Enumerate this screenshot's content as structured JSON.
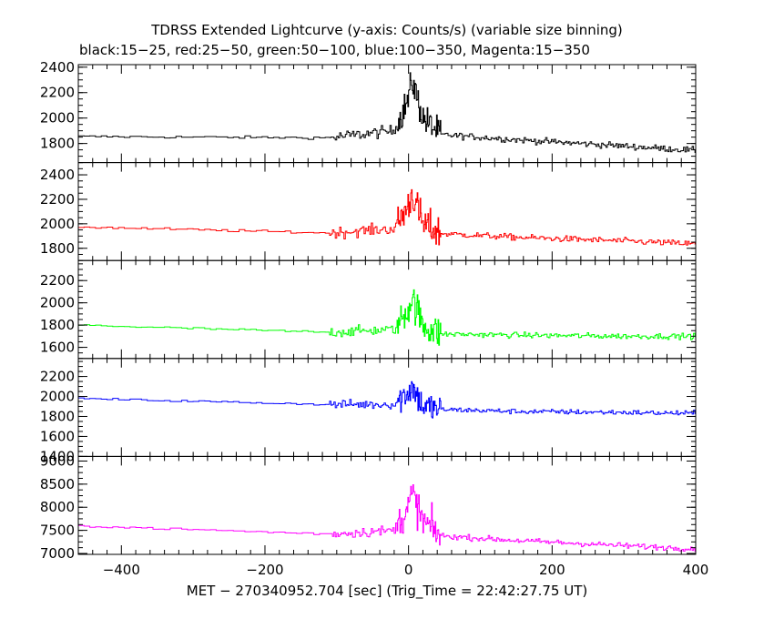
{
  "title_line1": "TDRSS Extended Lightcurve (y-axis: Counts/s) (variable size binning)",
  "title_line2": "black:15−25, red:25−50, green:50−100, blue:100−350, Magenta:15−350",
  "xlabel": "MET − 270340952.704 [sec] (Trig_Time = 22:42:27.75 UT)",
  "chart_data": {
    "type": "line",
    "xlim": [
      -460,
      400
    ],
    "x_ticks": [
      -400,
      -200,
      0,
      200,
      400
    ],
    "x_tick_labels": [
      "−400",
      "−200",
      "0",
      "200",
      "400"
    ],
    "grid": false,
    "panels": [
      {
        "band": "15-25",
        "color": "#000000",
        "ylim": [
          1650,
          2420
        ],
        "y_ticks": [
          1800,
          2000,
          2200,
          2400
        ],
        "y_tick_labels": [
          "1800",
          "2000",
          "2200",
          "2400"
        ],
        "segments": [
          {
            "x_from": -460,
            "x_to": -110,
            "bin": 8,
            "noise": 10
          },
          {
            "x_from": -110,
            "x_to": -15,
            "bin": 2,
            "noise": 45
          },
          {
            "x_from": -15,
            "x_to": 45,
            "bin": 1,
            "noise": 120
          },
          {
            "x_from": 45,
            "x_to": 400,
            "bin": 2,
            "noise": 25
          }
        ],
        "trend": [
          [
            -460,
            1855
          ],
          [
            -110,
            1845
          ],
          [
            -20,
            1900
          ],
          [
            0,
            2150
          ],
          [
            5,
            2300
          ],
          [
            20,
            2000
          ],
          [
            45,
            1870
          ],
          [
            150,
            1830
          ],
          [
            300,
            1780
          ],
          [
            400,
            1745
          ]
        ]
      },
      {
        "band": "25-50",
        "color": "#ff0000",
        "ylim": [
          1700,
          2500
        ],
        "y_ticks": [
          1800,
          2000,
          2200,
          2400
        ],
        "y_tick_labels": [
          "1800",
          "2000",
          "2200",
          "2400"
        ],
        "segments": [
          {
            "x_from": -460,
            "x_to": -110,
            "bin": 8,
            "noise": 10
          },
          {
            "x_from": -110,
            "x_to": -15,
            "bin": 2,
            "noise": 45
          },
          {
            "x_from": -15,
            "x_to": 45,
            "bin": 1,
            "noise": 140
          },
          {
            "x_from": 45,
            "x_to": 400,
            "bin": 2,
            "noise": 25
          }
        ],
        "trend": [
          [
            -460,
            1975
          ],
          [
            -110,
            1925
          ],
          [
            -20,
            1960
          ],
          [
            0,
            2150
          ],
          [
            5,
            2250
          ],
          [
            20,
            2000
          ],
          [
            45,
            1920
          ],
          [
            150,
            1890
          ],
          [
            300,
            1860
          ],
          [
            400,
            1835
          ]
        ]
      },
      {
        "band": "50-100",
        "color": "#00ff00",
        "ylim": [
          1500,
          2380
        ],
        "y_ticks": [
          1600,
          1800,
          2000,
          2200
        ],
        "y_tick_labels": [
          "1600",
          "1800",
          "2000",
          "2200"
        ],
        "segments": [
          {
            "x_from": -460,
            "x_to": -110,
            "bin": 8,
            "noise": 10
          },
          {
            "x_from": -110,
            "x_to": -15,
            "bin": 2,
            "noise": 45
          },
          {
            "x_from": -15,
            "x_to": 45,
            "bin": 1,
            "noise": 150
          },
          {
            "x_from": 45,
            "x_to": 400,
            "bin": 2,
            "noise": 25
          }
        ],
        "trend": [
          [
            -460,
            1800
          ],
          [
            -110,
            1735
          ],
          [
            -20,
            1760
          ],
          [
            0,
            1950
          ],
          [
            5,
            2050
          ],
          [
            20,
            1800
          ],
          [
            45,
            1720
          ],
          [
            150,
            1710
          ],
          [
            300,
            1700
          ],
          [
            400,
            1700
          ]
        ]
      },
      {
        "band": "100-350",
        "color": "#0000ff",
        "ylim": [
          1400,
          2380
        ],
        "y_ticks": [
          1400,
          1600,
          1800,
          2000,
          2200
        ],
        "y_tick_labels": [
          "1400",
          "1600",
          "1800",
          "2000",
          "2200"
        ],
        "segments": [
          {
            "x_from": -460,
            "x_to": -110,
            "bin": 8,
            "noise": 10
          },
          {
            "x_from": -110,
            "x_to": -15,
            "bin": 2,
            "noise": 45
          },
          {
            "x_from": -15,
            "x_to": 45,
            "bin": 1,
            "noise": 150
          },
          {
            "x_from": 45,
            "x_to": 400,
            "bin": 2,
            "noise": 25
          }
        ],
        "trend": [
          [
            -460,
            1980
          ],
          [
            -110,
            1920
          ],
          [
            -20,
            1920
          ],
          [
            0,
            2050
          ],
          [
            5,
            2100
          ],
          [
            20,
            1900
          ],
          [
            45,
            1870
          ],
          [
            150,
            1850
          ],
          [
            300,
            1840
          ],
          [
            400,
            1830
          ]
        ]
      },
      {
        "band": "15-350",
        "color": "#ff00ff",
        "ylim": [
          6980,
          9100
        ],
        "y_ticks": [
          7000,
          7500,
          8000,
          8500,
          9000
        ],
        "y_tick_labels": [
          "7000",
          "7500",
          "8000",
          "8500",
          "9000"
        ],
        "segments": [
          {
            "x_from": -460,
            "x_to": -110,
            "bin": 8,
            "noise": 25
          },
          {
            "x_from": -110,
            "x_to": -15,
            "bin": 2,
            "noise": 110
          },
          {
            "x_from": -15,
            "x_to": 45,
            "bin": 1,
            "noise": 380
          },
          {
            "x_from": 45,
            "x_to": 400,
            "bin": 2,
            "noise": 60
          }
        ],
        "trend": [
          [
            -460,
            7600
          ],
          [
            -110,
            7420
          ],
          [
            -20,
            7500
          ],
          [
            0,
            8000
          ],
          [
            5,
            8300
          ],
          [
            20,
            7700
          ],
          [
            45,
            7380
          ],
          [
            150,
            7280
          ],
          [
            300,
            7170
          ],
          [
            400,
            7100
          ]
        ]
      }
    ]
  }
}
